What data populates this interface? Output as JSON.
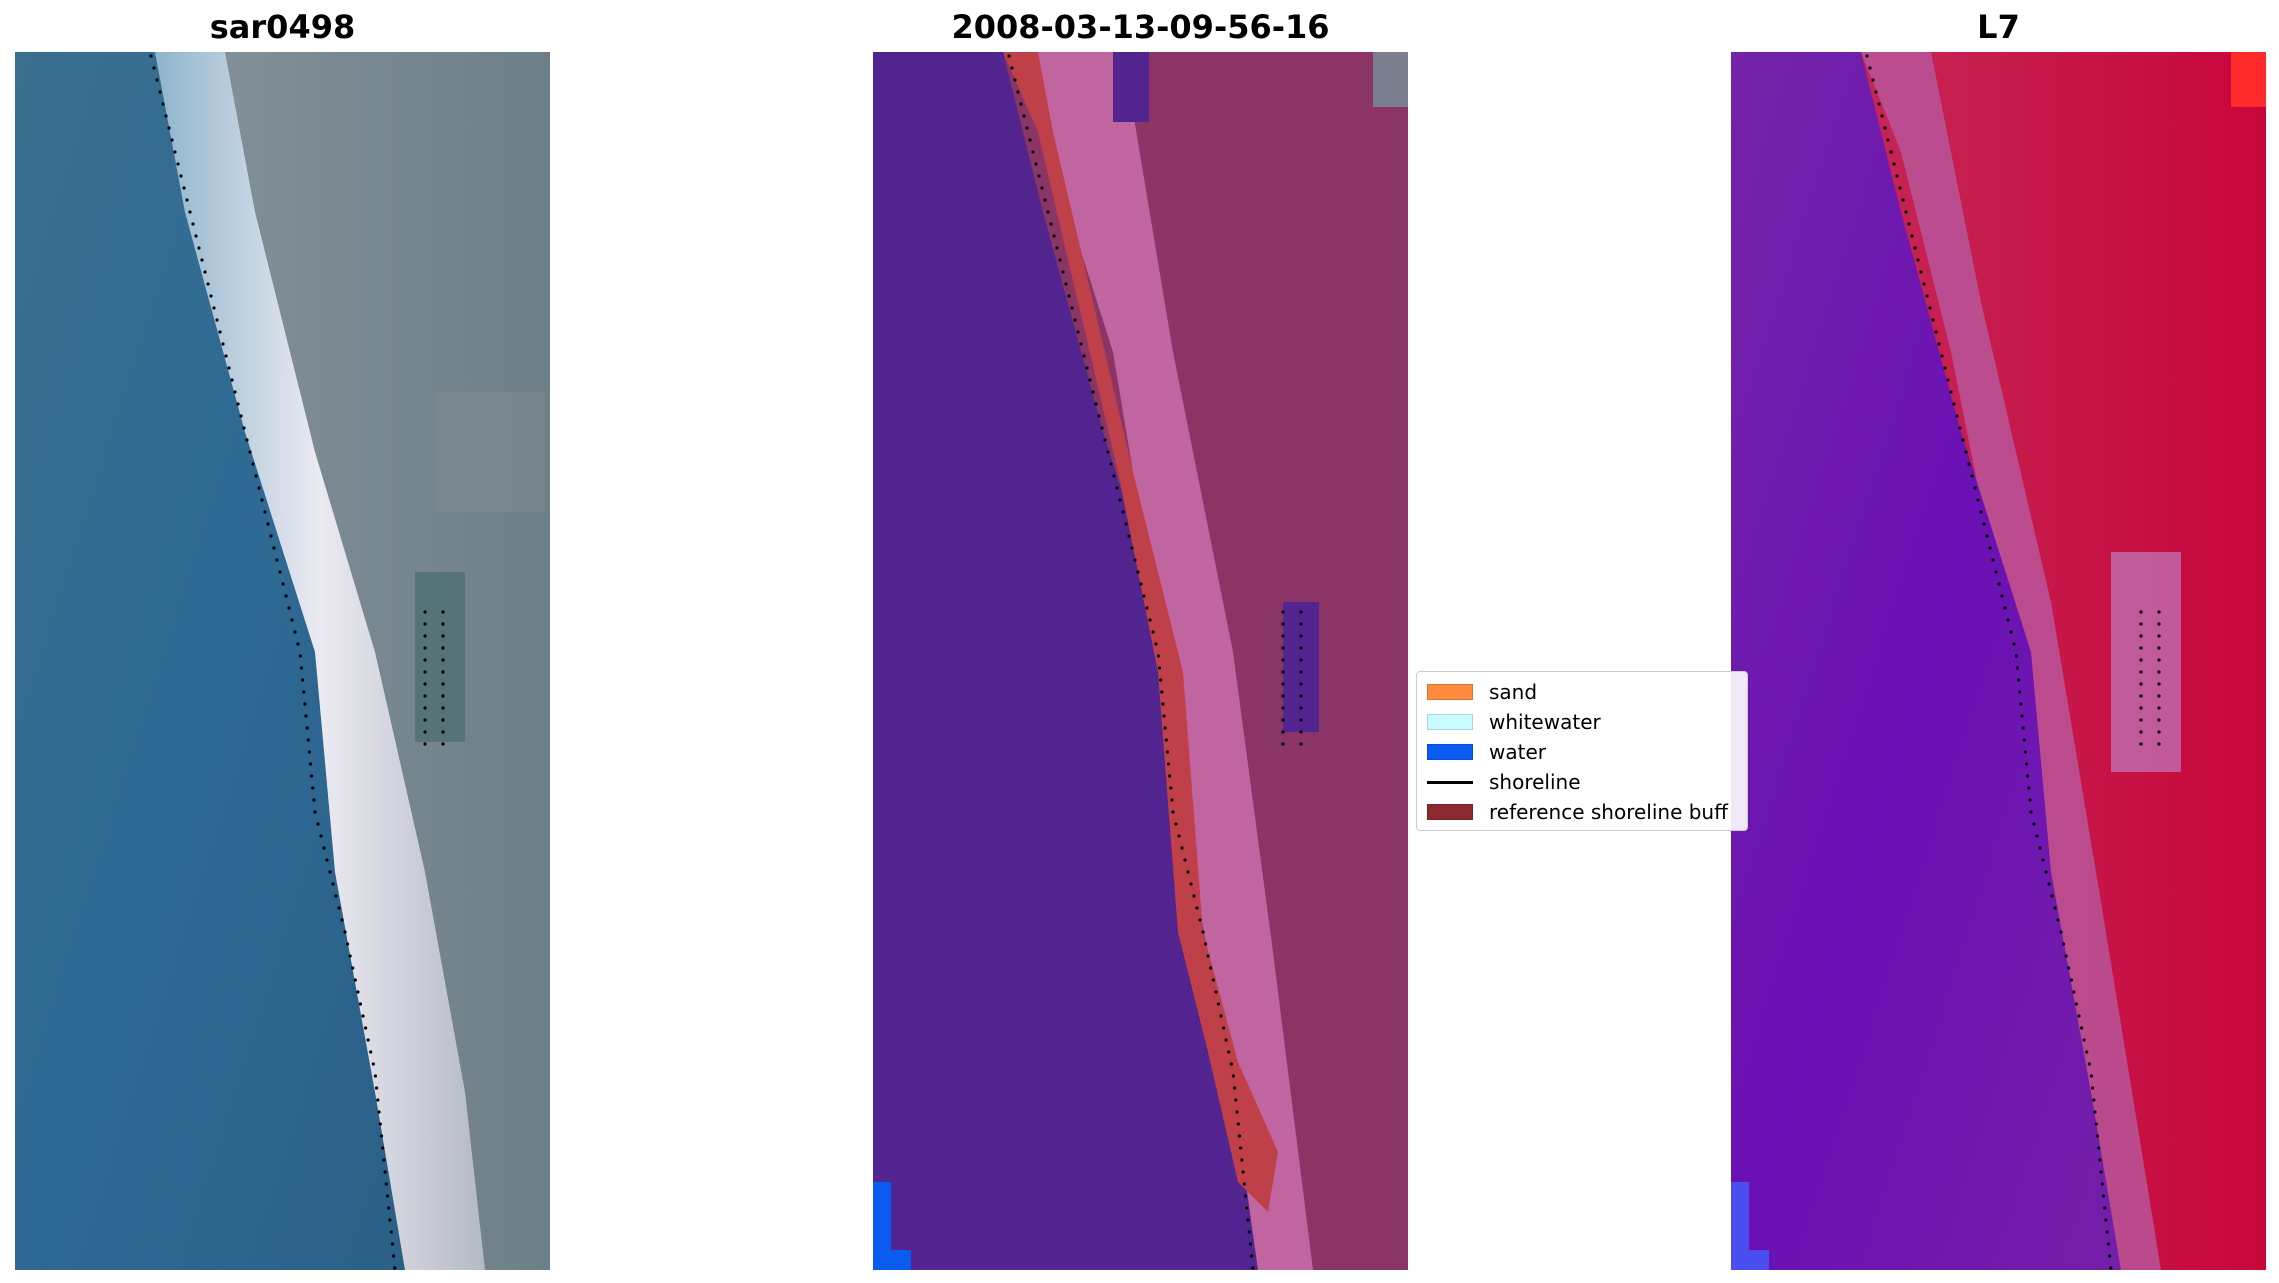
{
  "panels": [
    {
      "title": "sar0498"
    },
    {
      "title": "2008-03-13-09-56-16"
    },
    {
      "title": "L7"
    }
  ],
  "legend": {
    "items": [
      {
        "label": "sand",
        "color": "#ff8a3d"
      },
      {
        "label": "whitewater",
        "color": "#c8fbff"
      },
      {
        "label": "water",
        "color": "#0a5cf0"
      },
      {
        "label": "shoreline",
        "color": "#000000"
      },
      {
        "label": "reference shoreline buff",
        "color": "#8b2a2e"
      }
    ]
  },
  "colors": {
    "rgb_water": "#2f6a92",
    "rgb_beach": "#e8e6ef",
    "rgb_land": "#6e7f86",
    "class_water": "#52248f",
    "class_buffer": "#c0404a",
    "class_land": "#8a3565",
    "index_water": "#6a10b5",
    "index_land": "#d01048"
  }
}
